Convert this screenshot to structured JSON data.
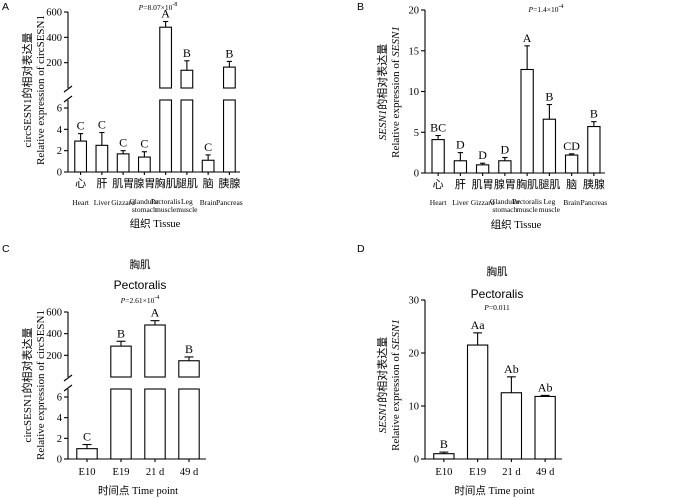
{
  "chart_data": [
    {
      "panel": "A",
      "type": "bar",
      "pvalue": "P=8.07×10-8",
      "ylabel_cn": "circSESN1的相对表达量",
      "ylabel_en": "Relative expression of circSESN1",
      "xlabel": "组织 Tissue",
      "broken_axis": true,
      "ylim_lower": [
        0,
        6
      ],
      "ylim_upper": [
        0,
        600
      ],
      "yticks_lower": [
        "0",
        "2",
        "4",
        "6"
      ],
      "yticks_upper": [
        "200",
        "400",
        "600"
      ],
      "categories_cn": [
        "心",
        "肝",
        "肌胃",
        "腺胃",
        "胸肌",
        "腿肌",
        "脑",
        "胰腺"
      ],
      "categories_en": [
        "Heart",
        "Liver",
        "Gizzard",
        "Glandular stomach",
        "Pectoralis muscle",
        "Leg muscle",
        "Brain",
        "Pancreas"
      ],
      "values": [
        2.9,
        2.5,
        1.7,
        1.4,
        480,
        140,
        1.1,
        165
      ],
      "errors": [
        0.7,
        1.2,
        0.3,
        0.5,
        45,
        75,
        0.5,
        45
      ],
      "letters": [
        "C",
        "C",
        "C",
        "C",
        "A",
        "B",
        "C",
        "B"
      ]
    },
    {
      "panel": "B",
      "type": "bar",
      "pvalue": "P=1.4×10-4",
      "ylabel_cn": "SESN1的相对表达量",
      "ylabel_en": "Relative expression of SESN1",
      "xlabel": "组织 Tissue",
      "ylim": [
        0,
        20
      ],
      "yticks": [
        "0",
        "5",
        "10",
        "15",
        "20"
      ],
      "categories_cn": [
        "心",
        "肝",
        "肌胃",
        "腺胃",
        "胸肌",
        "腿肌",
        "脑",
        "胰腺"
      ],
      "categories_en": [
        "Heart",
        "Liver",
        "Gizzard",
        "Glandular stomach",
        "Pectoralis muscle",
        "Leg muscle",
        "Brain",
        "Pancreas"
      ],
      "values": [
        4.1,
        1.5,
        1.0,
        1.5,
        12.7,
        6.6,
        2.2,
        5.7
      ],
      "errors": [
        0.5,
        1.0,
        0.2,
        0.4,
        2.9,
        1.8,
        0.15,
        0.6
      ],
      "letters": [
        "BC",
        "D",
        "D",
        "D",
        "A",
        "B",
        "CD",
        "B"
      ]
    },
    {
      "panel": "C",
      "type": "bar",
      "title_cn": "胸肌",
      "title_en": "Pectoralis",
      "pvalue": "P=2.61×10-4",
      "ylabel_cn": "circSESN1的相对表达量",
      "ylabel_en": "Relative expression of circSESN1",
      "xlabel": "时间点  Time point",
      "broken_axis": true,
      "ylim_lower": [
        0,
        6
      ],
      "ylim_upper": [
        0,
        600
      ],
      "yticks_lower": [
        "0",
        "2",
        "4",
        "6"
      ],
      "yticks_upper": [
        "200",
        "400",
        "600"
      ],
      "categories": [
        "E10",
        "E19",
        "21 d",
        "49 d"
      ],
      "values": [
        1.0,
        285,
        480,
        150
      ],
      "errors": [
        0.4,
        45,
        40,
        35
      ],
      "letters": [
        "C",
        "B",
        "A",
        "B"
      ]
    },
    {
      "panel": "D",
      "type": "bar",
      "title_cn": "胸肌",
      "title_en": "Pectoralis",
      "pvalue": "P=0.011",
      "ylabel_cn": "SESN1的相对表达量",
      "ylabel_en": "Relative expression of SESN1",
      "xlabel": "时间点  Time point",
      "ylim": [
        0,
        30
      ],
      "yticks": [
        "0",
        "10",
        "20",
        "30"
      ],
      "categories": [
        "E10",
        "E19",
        "21 d",
        "49 d"
      ],
      "values": [
        1.0,
        21.5,
        12.5,
        11.8
      ],
      "errors": [
        0.3,
        2.3,
        3.0,
        0.2
      ],
      "letters": [
        "B",
        "Aa",
        "Ab",
        "Ab"
      ]
    }
  ]
}
